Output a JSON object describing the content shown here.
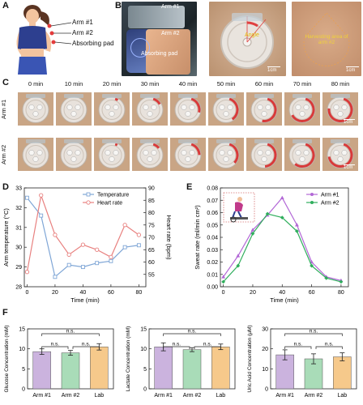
{
  "panel_labels": [
    "A",
    "B",
    "C",
    "D",
    "E",
    "F"
  ],
  "panel_a": {
    "labels": [
      "Arm #1",
      "Arm #2",
      "Absorbing pad"
    ]
  },
  "panel_b": {
    "phone_labels": [
      "Arm #1",
      "Arm #2",
      "Absorbing pad"
    ],
    "angle_label": "Angle",
    "scale_1": "1cm",
    "harvest_label": "Harvesting area of arm #2",
    "scale_2": "1cm"
  },
  "panel_c": {
    "times": [
      "0 min",
      "10 min",
      "20 min",
      "30 min",
      "40 min",
      "50 min",
      "60 min",
      "70 min",
      "80 min"
    ],
    "rows": [
      "Arm #1",
      "Arm #2"
    ],
    "fill_fraction_row1": [
      0,
      0,
      0.05,
      0.15,
      0.3,
      0.45,
      0.6,
      0.78,
      0.9
    ],
    "fill_fraction_row2": [
      0,
      0,
      0.04,
      0.12,
      0.25,
      0.4,
      0.55,
      0.7,
      0.85
    ],
    "scale": "1cm"
  },
  "chart_data": [
    {
      "type": "line",
      "panel": "D",
      "x": [
        0,
        10,
        20,
        30,
        40,
        50,
        60,
        70,
        80
      ],
      "xlabel": "Time (min)",
      "ylabel": "Arm temperature (°C)",
      "y2label": "Heart rate (bpm)",
      "xlim": [
        -2,
        85
      ],
      "ylim": [
        28,
        33
      ],
      "y2lim": [
        50,
        90
      ],
      "xticks": [
        "0",
        "20",
        "40",
        "60",
        "80"
      ],
      "yticks": [
        "28",
        "29",
        "30",
        "31",
        "32",
        "33"
      ],
      "y2ticks": [
        "55",
        "60",
        "65",
        "70",
        "75",
        "80",
        "85",
        "90"
      ],
      "legend": "top-right",
      "series": [
        {
          "name": "Temperature",
          "axis": "left",
          "color": "#7fa6d6",
          "values": [
            32.5,
            31.6,
            28.5,
            29.1,
            29.0,
            29.2,
            29.3,
            30.0,
            30.1
          ]
        },
        {
          "name": "Heart rate",
          "axis": "right",
          "color": "#e8807f",
          "values": [
            56,
            87,
            71,
            63,
            67,
            65,
            62,
            75,
            71
          ]
        }
      ]
    },
    {
      "type": "line",
      "panel": "E",
      "x": [
        0,
        10,
        20,
        30,
        40,
        50,
        60,
        70,
        80
      ],
      "xlabel": "Time (min)",
      "ylabel": "Sweat rate (ml/min cm²)",
      "xlim": [
        -2,
        85
      ],
      "ylim": [
        0,
        0.08
      ],
      "xticks": [
        "0",
        "20",
        "40",
        "60",
        "80"
      ],
      "yticks": [
        "0.00",
        "0.01",
        "0.02",
        "0.03",
        "0.04",
        "0.05",
        "0.06",
        "0.07",
        "0.08"
      ],
      "legend": "top-right",
      "series": [
        {
          "name": "Arm #1",
          "color": "#b267d6",
          "values": [
            0.008,
            0.025,
            0.046,
            0.058,
            0.072,
            0.05,
            0.02,
            0.008,
            0.005
          ]
        },
        {
          "name": "Arm #2",
          "color": "#2fae5c",
          "values": [
            0.004,
            0.017,
            0.043,
            0.059,
            0.056,
            0.045,
            0.017,
            0.007,
            0.004
          ]
        }
      ]
    },
    {
      "type": "bar",
      "panel": "F1",
      "categories": [
        "Arm #1",
        "Arm #2",
        "Lab"
      ],
      "values": [
        9.3,
        9.0,
        10.5
      ],
      "errors": [
        0.7,
        0.6,
        0.8
      ],
      "colors": [
        "#cbb3de",
        "#a9dcb8",
        "#f6c98b"
      ],
      "ylabel": "Glucose Concentration (mM)",
      "ylim": [
        0,
        15
      ],
      "yticks": [
        "0",
        "5",
        "10",
        "15"
      ],
      "annotations": [
        "n.s.",
        "n.s.",
        "n.s."
      ]
    },
    {
      "type": "bar",
      "panel": "F2",
      "categories": [
        "Arm #1",
        "Arm #2",
        "Lab"
      ],
      "values": [
        10.5,
        9.8,
        10.5
      ],
      "errors": [
        1.0,
        0.5,
        0.7
      ],
      "colors": [
        "#cbb3de",
        "#a9dcb8",
        "#f6c98b"
      ],
      "ylabel": "Lactate Concentration (mM)",
      "ylim": [
        0,
        15
      ],
      "yticks": [
        "0",
        "5",
        "10",
        "15"
      ],
      "annotations": [
        "n.s.",
        "n.s.",
        "n.s."
      ]
    },
    {
      "type": "bar",
      "panel": "F3",
      "categories": [
        "Arm #1",
        "Arm #2",
        "Lab"
      ],
      "values": [
        17,
        15,
        16
      ],
      "errors": [
        2.5,
        2.5,
        2.0
      ],
      "colors": [
        "#cbb3de",
        "#a9dcb8",
        "#f6c98b"
      ],
      "ylabel": "Uric Acid Concentration (μM)",
      "ylim": [
        0,
        30
      ],
      "yticks": [
        "0",
        "10",
        "20",
        "30"
      ],
      "annotations": [
        "n.s.",
        "n.s.",
        "n.s."
      ]
    }
  ]
}
